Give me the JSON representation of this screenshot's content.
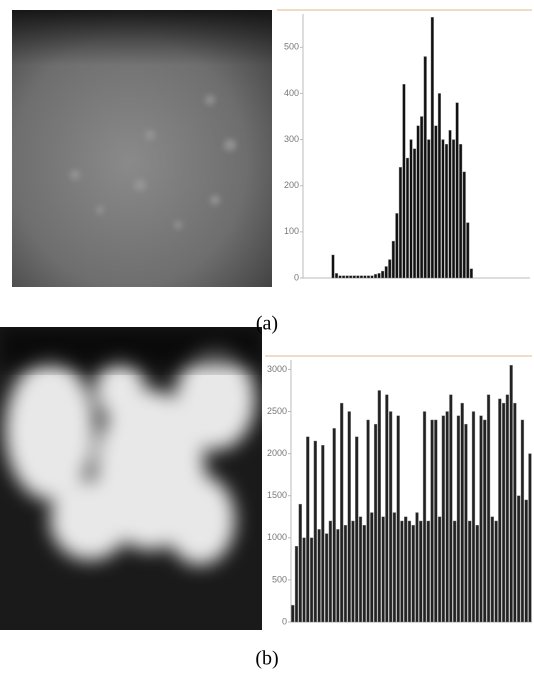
{
  "chart_data": [
    {
      "type": "histogram",
      "caption": "(a)",
      "color": "#111111",
      "bins": [
        0,
        4,
        8,
        12,
        16,
        20,
        24,
        28,
        32,
        36,
        40,
        44,
        48,
        52,
        56,
        60,
        64,
        68,
        72,
        76,
        80,
        84,
        88,
        92,
        96,
        100,
        104,
        108,
        112,
        116,
        120,
        124,
        128,
        132,
        136,
        140,
        144,
        148,
        152,
        156,
        160,
        164,
        168,
        172,
        176,
        180,
        184,
        188,
        192,
        196,
        200,
        204,
        208,
        212,
        216,
        220,
        224,
        228,
        232,
        236,
        240,
        244,
        248,
        252,
        256
      ],
      "counts": [
        0,
        0,
        0,
        0,
        0,
        0,
        0,
        0,
        50,
        10,
        5,
        5,
        5,
        5,
        5,
        5,
        5,
        5,
        5,
        5,
        8,
        10,
        15,
        25,
        40,
        80,
        140,
        240,
        420,
        260,
        300,
        280,
        330,
        350,
        480,
        300,
        565,
        330,
        400,
        300,
        290,
        320,
        300,
        380,
        290,
        230,
        120,
        20,
        0,
        0,
        0,
        0,
        0,
        0,
        0,
        0,
        0,
        0,
        0,
        0,
        0,
        0,
        0,
        0
      ],
      "xlim": [
        0,
        256
      ],
      "ylim": [
        0,
        570
      ],
      "yticks": [
        0,
        100,
        200,
        300,
        400,
        500
      ]
    },
    {
      "type": "histogram",
      "caption": "(b)",
      "color": "#222222",
      "bins": [
        0,
        4,
        8,
        12,
        16,
        20,
        24,
        28,
        32,
        36,
        40,
        44,
        48,
        52,
        56,
        60,
        64,
        68,
        72,
        76,
        80,
        84,
        88,
        92,
        96,
        100,
        104,
        108,
        112,
        116,
        120,
        124,
        128,
        132,
        136,
        140,
        144,
        148,
        152,
        156,
        160,
        164,
        168,
        172,
        176,
        180,
        184,
        188,
        192,
        196,
        200,
        204,
        208,
        212,
        216,
        220,
        224,
        228,
        232,
        236,
        240,
        244,
        248,
        252,
        256
      ],
      "counts": [
        200,
        900,
        1400,
        1000,
        2200,
        1000,
        2150,
        1100,
        2100,
        1050,
        1200,
        2300,
        1100,
        2600,
        1150,
        2500,
        1200,
        2200,
        1250,
        1150,
        2400,
        1300,
        2350,
        2750,
        1250,
        2700,
        2500,
        1300,
        2450,
        1200,
        1250,
        1200,
        1150,
        1300,
        1200,
        2500,
        1200,
        2400,
        2400,
        1250,
        2450,
        2500,
        2700,
        1200,
        2450,
        2600,
        2350,
        1200,
        2500,
        1150,
        2450,
        2400,
        2700,
        1250,
        1200,
        2650,
        2600,
        2700,
        3050,
        2600,
        1500,
        2400,
        1450,
        2000
      ],
      "xlim": [
        0,
        256
      ],
      "ylim": [
        0,
        3100
      ],
      "yticks": [
        0,
        500,
        1000,
        1500,
        2000,
        2500,
        3000
      ]
    }
  ]
}
